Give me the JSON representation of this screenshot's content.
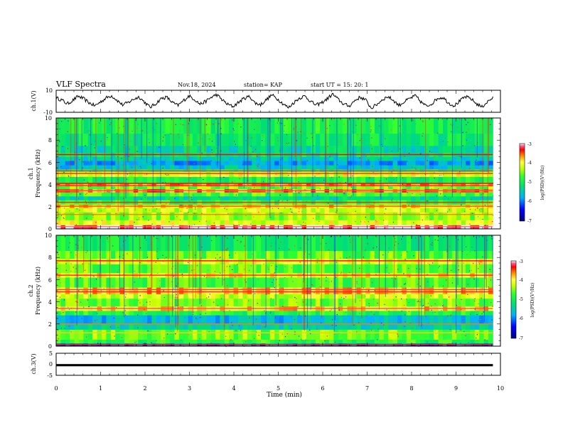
{
  "header": {
    "title": "VLF Spectra",
    "date": "Nov.18, 2024",
    "station": "station= KAP",
    "start": "start  UT =   15: 20: 1"
  },
  "colors": {
    "colormap": [
      "#000080",
      "#0000ff",
      "#00b0ff",
      "#00e070",
      "#30ff30",
      "#c8ff00",
      "#ffff40",
      "#ff9000",
      "#ff0000",
      "#ff6090",
      "#ffffff"
    ],
    "trace": "#000000"
  },
  "chart_data": [
    {
      "type": "line",
      "name": "ch.1 waveform",
      "ylabel": "ch.1(V)",
      "ylim": [
        -10,
        10
      ],
      "yticks": [
        "10",
        "-10"
      ],
      "xlim": [
        0,
        10
      ],
      "data_span_min": 9.83,
      "values": [
        3.1,
        1.2,
        -2.4,
        0.8,
        4.6,
        2.2,
        -1.5,
        -4.1,
        -0.6,
        2.9,
        5.2,
        1.0,
        -3.3,
        -1.2,
        1.9,
        4.0,
        -0.8,
        -5.6,
        -2.2,
        2.5,
        3.7,
        -1.0,
        -3.9,
        0.4,
        4.9,
        2.0,
        -2.6,
        -0.3,
        3.4,
        6.1,
        1.5,
        -2.8,
        -4.8,
        -0.9,
        2.7,
        4.4,
        -1.7,
        -3.0,
        1.3,
        5.8,
        2.3,
        -2.0,
        -5.9,
        -1.1,
        3.0,
        4.7,
        0.2,
        -3.6,
        -1.4,
        2.1,
        6.5,
        1.8,
        -2.5,
        -4.4,
        0.6,
        3.8,
        1.1,
        -6.3,
        -2.9,
        1.6,
        4.3,
        0.9,
        -3.7,
        -0.4,
        2.6,
        5.0,
        -0.7,
        -4.6,
        -1.9,
        2.8,
        3.5,
        -1.6,
        -4.0,
        0.1,
        4.1,
        2.4,
        -2.1,
        -5.2,
        -0.5,
        3.2
      ],
      "note": "waveform sampled roughly across the 0-9.83 min record"
    },
    {
      "type": "heatmap",
      "name": "ch.1 spectrogram",
      "xlabel": "Time (min)",
      "ylabel": "Frequency (kHz)",
      "channel_label": "ch.1",
      "xlim": [
        0,
        10
      ],
      "ylim": [
        0,
        10
      ],
      "yticks": [
        "0",
        "2",
        "4",
        "6",
        "8",
        "10"
      ],
      "colorbar": {
        "label": "log(PSD)(V²/Hz)",
        "range": [
          -7,
          -3
        ],
        "ticks": [
          "-3",
          "-4",
          "-5",
          "-6",
          "-7"
        ]
      },
      "bands": [
        {
          "f0": 0.0,
          "f1": 0.35,
          "lvl": 0.98
        },
        {
          "f0": 0.35,
          "f1": 0.8,
          "lvl": 0.72
        },
        {
          "f0": 0.8,
          "f1": 1.5,
          "lvl": 0.65
        },
        {
          "f0": 1.5,
          "f1": 1.9,
          "lvl": 0.7
        },
        {
          "f0": 1.9,
          "f1": 2.2,
          "lvl": 0.78
        },
        {
          "f0": 2.2,
          "f1": 2.6,
          "lvl": 0.55
        },
        {
          "f0": 2.6,
          "f1": 2.95,
          "lvl": 0.42
        },
        {
          "f0": 2.95,
          "f1": 3.3,
          "lvl": 0.58
        },
        {
          "f0": 3.3,
          "f1": 3.6,
          "lvl": 0.85
        },
        {
          "f0": 3.6,
          "f1": 3.85,
          "lvl": 0.62
        },
        {
          "f0": 3.85,
          "f1": 4.15,
          "lvl": 0.82
        },
        {
          "f0": 4.15,
          "f1": 4.7,
          "lvl": 0.52
        },
        {
          "f0": 4.7,
          "f1": 5.15,
          "lvl": 0.72
        },
        {
          "f0": 5.15,
          "f1": 5.4,
          "lvl": 0.5
        },
        {
          "f0": 5.4,
          "f1": 5.75,
          "lvl": 0.36
        },
        {
          "f0": 5.75,
          "f1": 6.15,
          "lvl": 0.3
        },
        {
          "f0": 6.15,
          "f1": 6.5,
          "lvl": 0.38
        },
        {
          "f0": 6.5,
          "f1": 6.85,
          "lvl": 0.46
        },
        {
          "f0": 6.85,
          "f1": 7.5,
          "lvl": 0.42
        },
        {
          "f0": 7.5,
          "f1": 8.6,
          "lvl": 0.48
        },
        {
          "f0": 8.6,
          "f1": 10.0,
          "lvl": 0.52
        }
      ],
      "lines": [
        {
          "f": 6.7,
          "lvl": 0.92
        },
        {
          "f": 5.25,
          "lvl": 0.95
        },
        {
          "f": 5.0,
          "lvl": 0.9
        },
        {
          "f": 4.1,
          "lvl": 0.92
        },
        {
          "f": 3.9,
          "lvl": 0.94
        },
        {
          "f": 3.45,
          "lvl": 0.96
        },
        {
          "f": 2.4,
          "lvl": 0.9
        },
        {
          "f": 2.05,
          "lvl": 0.88
        },
        {
          "f": 1.3,
          "lvl": 0.85
        },
        {
          "f": 0.2,
          "lvl": 0.97
        }
      ]
    },
    {
      "type": "heatmap",
      "name": "ch.2 spectrogram",
      "xlabel": "Time (min)",
      "ylabel": "Frequency (kHz)",
      "channel_label": "ch.2",
      "xlim": [
        0,
        10
      ],
      "ylim": [
        0,
        10
      ],
      "yticks": [
        "0",
        "2",
        "4",
        "6",
        "8",
        "10"
      ],
      "colorbar": {
        "label": "log(PSD)(V²/Hz)",
        "range": [
          -7,
          -3
        ],
        "ticks": [
          "-3",
          "-4",
          "-5",
          "-6",
          "-7"
        ]
      },
      "bands": [
        {
          "f0": 0.0,
          "f1": 0.25,
          "lvl": 0.22
        },
        {
          "f0": 0.25,
          "f1": 0.6,
          "lvl": 0.55
        },
        {
          "f0": 0.6,
          "f1": 1.5,
          "lvl": 0.62
        },
        {
          "f0": 1.5,
          "f1": 2.0,
          "lvl": 0.4
        },
        {
          "f0": 2.0,
          "f1": 2.8,
          "lvl": 0.34
        },
        {
          "f0": 2.8,
          "f1": 3.2,
          "lvl": 0.55
        },
        {
          "f0": 3.2,
          "f1": 3.6,
          "lvl": 0.78
        },
        {
          "f0": 3.6,
          "f1": 4.3,
          "lvl": 0.62
        },
        {
          "f0": 4.3,
          "f1": 4.7,
          "lvl": 0.7
        },
        {
          "f0": 4.7,
          "f1": 5.3,
          "lvl": 0.8
        },
        {
          "f0": 5.3,
          "f1": 6.2,
          "lvl": 0.58
        },
        {
          "f0": 6.2,
          "f1": 6.6,
          "lvl": 0.75
        },
        {
          "f0": 6.6,
          "f1": 7.4,
          "lvl": 0.6
        },
        {
          "f0": 7.4,
          "f1": 7.9,
          "lvl": 0.72
        },
        {
          "f0": 7.9,
          "f1": 8.6,
          "lvl": 0.6
        },
        {
          "f0": 8.6,
          "f1": 10.0,
          "lvl": 0.5
        }
      ],
      "lines": [
        {
          "f": 7.7,
          "lvl": 0.92
        },
        {
          "f": 6.4,
          "lvl": 0.9
        },
        {
          "f": 5.1,
          "lvl": 0.95
        },
        {
          "f": 4.9,
          "lvl": 0.9
        },
        {
          "f": 3.4,
          "lvl": 0.96
        },
        {
          "f": 2.0,
          "lvl": 0.85
        },
        {
          "f": 1.2,
          "lvl": 0.8
        },
        {
          "f": 0.15,
          "lvl": 0.9
        }
      ]
    },
    {
      "type": "line",
      "name": "ch.3 waveform",
      "ylabel": "ch.3(V)",
      "ylim": [
        -5,
        5
      ],
      "yticks": [
        "5",
        "0",
        "-5"
      ],
      "xlim": [
        0,
        10
      ],
      "xlabel": "Time (min)",
      "xticks": [
        "0",
        "1",
        "2",
        "3",
        "4",
        "5",
        "6",
        "7",
        "8",
        "9",
        "10"
      ],
      "data_span_min": 9.83,
      "band": {
        "min": -0.9,
        "max": 0.1
      }
    }
  ]
}
